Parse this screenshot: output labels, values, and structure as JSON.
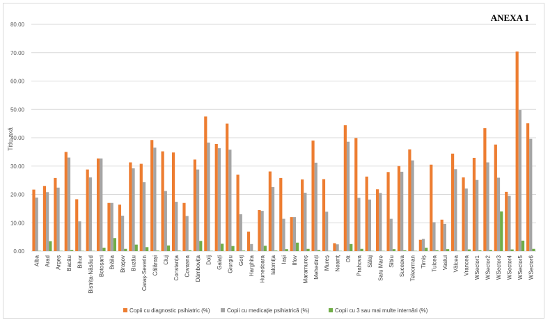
{
  "header": {
    "annex": "ANEXA 1"
  },
  "chart_data": {
    "type": "bar",
    "title": "",
    "xlabel": "",
    "ylabel": "Titlu axă",
    "ylim": [
      0,
      80
    ],
    "yticks": [
      "0.00",
      "10.00",
      "20.00",
      "30.00",
      "40.00",
      "50.00",
      "60.00",
      "70.00",
      "80.00"
    ],
    "grid": true,
    "legend_position": "bottom",
    "categories": [
      "Alba",
      "Arad",
      "Argeș",
      "Bacău",
      "Bihor",
      "Bistrița-Năsăud",
      "Botoșani",
      "Brăila",
      "Brașov",
      "Buzău",
      "Caraș-Severin",
      "Călărași",
      "Cluj",
      "Constanța",
      "Covasna",
      "Dâmbovița",
      "Dolj",
      "Galați",
      "Giurgiu",
      "Gorj",
      "Harghita",
      "Hunedoara",
      "Ialomița",
      "Iași",
      "Ilfov",
      "Maramureș",
      "Mehedinți",
      "Mureș",
      "Neamț",
      "Olt",
      "Prahova",
      "Sălaj",
      "Satu Mare",
      "Sibiu",
      "Suceava",
      "Teleorman",
      "Timiș",
      "Tulcea",
      "Vaslui",
      "Vâlcea",
      "Vrancea",
      "WSector1",
      "WSector2",
      "WSector3",
      "WSector4",
      "WSector5",
      "WSector6"
    ],
    "series": [
      {
        "name": "Copii cu diagnostic psihiatric (%)",
        "color": "#ed7d31",
        "values": [
          21.7,
          23.0,
          25.8,
          35.0,
          18.3,
          28.8,
          32.7,
          17.0,
          16.4,
          31.3,
          30.8,
          39.2,
          35.2,
          34.8,
          17.0,
          32.3,
          47.5,
          37.8,
          45.0,
          27.0,
          6.9,
          14.5,
          28.1,
          25.8,
          12.0,
          25.3,
          39.0,
          25.4,
          2.8,
          44.4,
          39.9,
          26.3,
          21.8,
          27.9,
          30.0,
          35.9,
          4.0,
          30.5,
          11.1,
          34.4,
          26.0,
          32.9,
          43.4,
          37.6,
          20.9,
          70.4,
          45.1
        ]
      },
      {
        "name": "Copii cu medicație psihiatrică (%)",
        "color": "#a5a5a5",
        "values": [
          18.9,
          20.8,
          22.4,
          33.0,
          10.5,
          26.0,
          32.7,
          17.0,
          12.5,
          29.2,
          24.3,
          36.5,
          21.2,
          17.4,
          12.4,
          28.8,
          38.3,
          36.3,
          35.8,
          13.0,
          2.5,
          14.2,
          22.6,
          11.4,
          12.0,
          20.6,
          31.2,
          13.9,
          2.4,
          38.6,
          18.8,
          18.2,
          20.5,
          11.4,
          28.0,
          32.0,
          4.3,
          10.2,
          9.6,
          28.9,
          22.1,
          25.1,
          31.3,
          25.9,
          19.5,
          49.8,
          39.6
        ]
      },
      {
        "name": "Copii cu 3 sau mai multe internări (%)",
        "color": "#70ad47",
        "values": [
          0.1,
          3.5,
          0.1,
          0.4,
          0.1,
          0.1,
          1.2,
          4.6,
          0.8,
          2.3,
          1.4,
          0.2,
          2.0,
          0.2,
          0.3,
          3.6,
          0.1,
          2.6,
          1.8,
          0.2,
          0.1,
          1.9,
          0.2,
          0.7,
          3.0,
          0.8,
          0.4,
          0.1,
          0.1,
          2.5,
          0.8,
          0.1,
          0.1,
          0.7,
          0.3,
          0.1,
          1.2,
          0.3,
          0.7,
          0.1,
          0.6,
          0.3,
          0.4,
          14.0,
          0.6,
          3.7,
          0.8
        ]
      }
    ]
  }
}
